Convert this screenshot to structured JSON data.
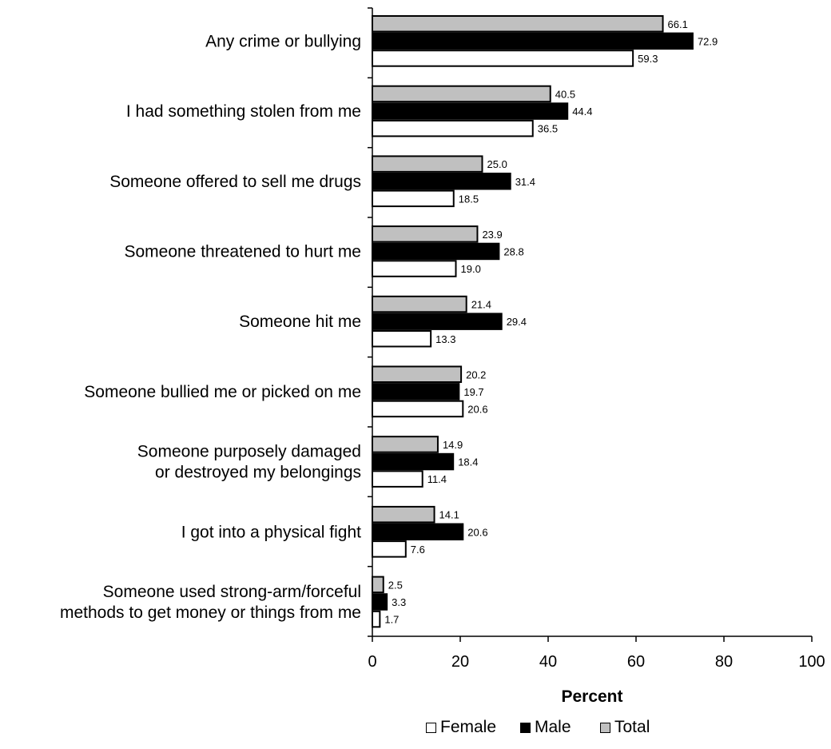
{
  "chart_data": {
    "type": "bar",
    "orientation": "horizontal",
    "categories": [
      [
        "Any crime or bullying"
      ],
      [
        "I had something stolen from me"
      ],
      [
        "Someone offered to sell me drugs"
      ],
      [
        "Someone threatened to hurt me"
      ],
      [
        "Someone hit me"
      ],
      [
        "Someone bullied me or picked on me"
      ],
      [
        "Someone purposely damaged",
        "or destroyed my belongings"
      ],
      [
        "I got into a physical fight"
      ],
      [
        "Someone used strong-arm/forceful",
        "methods to get money or things from me"
      ]
    ],
    "series": [
      {
        "name": "Total",
        "color": "#c0c0c0",
        "values": [
          66.1,
          40.5,
          25.0,
          23.9,
          21.4,
          20.2,
          14.9,
          14.1,
          2.5
        ],
        "labels": [
          "66.1",
          "40.5",
          "25.0",
          "23.9",
          "21.4",
          "20.2",
          "14.9",
          "14.1",
          "2.5"
        ]
      },
      {
        "name": "Male",
        "color": "#000000",
        "values": [
          72.9,
          44.4,
          31.4,
          28.8,
          29.4,
          19.7,
          18.4,
          20.6,
          3.3
        ],
        "labels": [
          "72.9",
          "44.4",
          "31.4",
          "28.8",
          "29.4",
          "19.7",
          "18.4",
          "20.6",
          "3.3"
        ]
      },
      {
        "name": "Female",
        "color": "#ffffff",
        "values": [
          59.3,
          36.5,
          18.5,
          19.0,
          13.3,
          20.6,
          11.4,
          7.6,
          1.7
        ],
        "labels": [
          "59.3",
          "36.5",
          "18.5",
          "19.0",
          "13.3",
          "20.6",
          "11.4",
          "7.6",
          "1.7"
        ]
      }
    ],
    "xlabel": "Percent",
    "xlim": [
      0,
      100
    ],
    "xticks": [
      "0",
      "20",
      "40",
      "60",
      "80",
      "100"
    ],
    "legend_position": "bottom",
    "legend_order": [
      "Female",
      "Male",
      "Total"
    ]
  }
}
